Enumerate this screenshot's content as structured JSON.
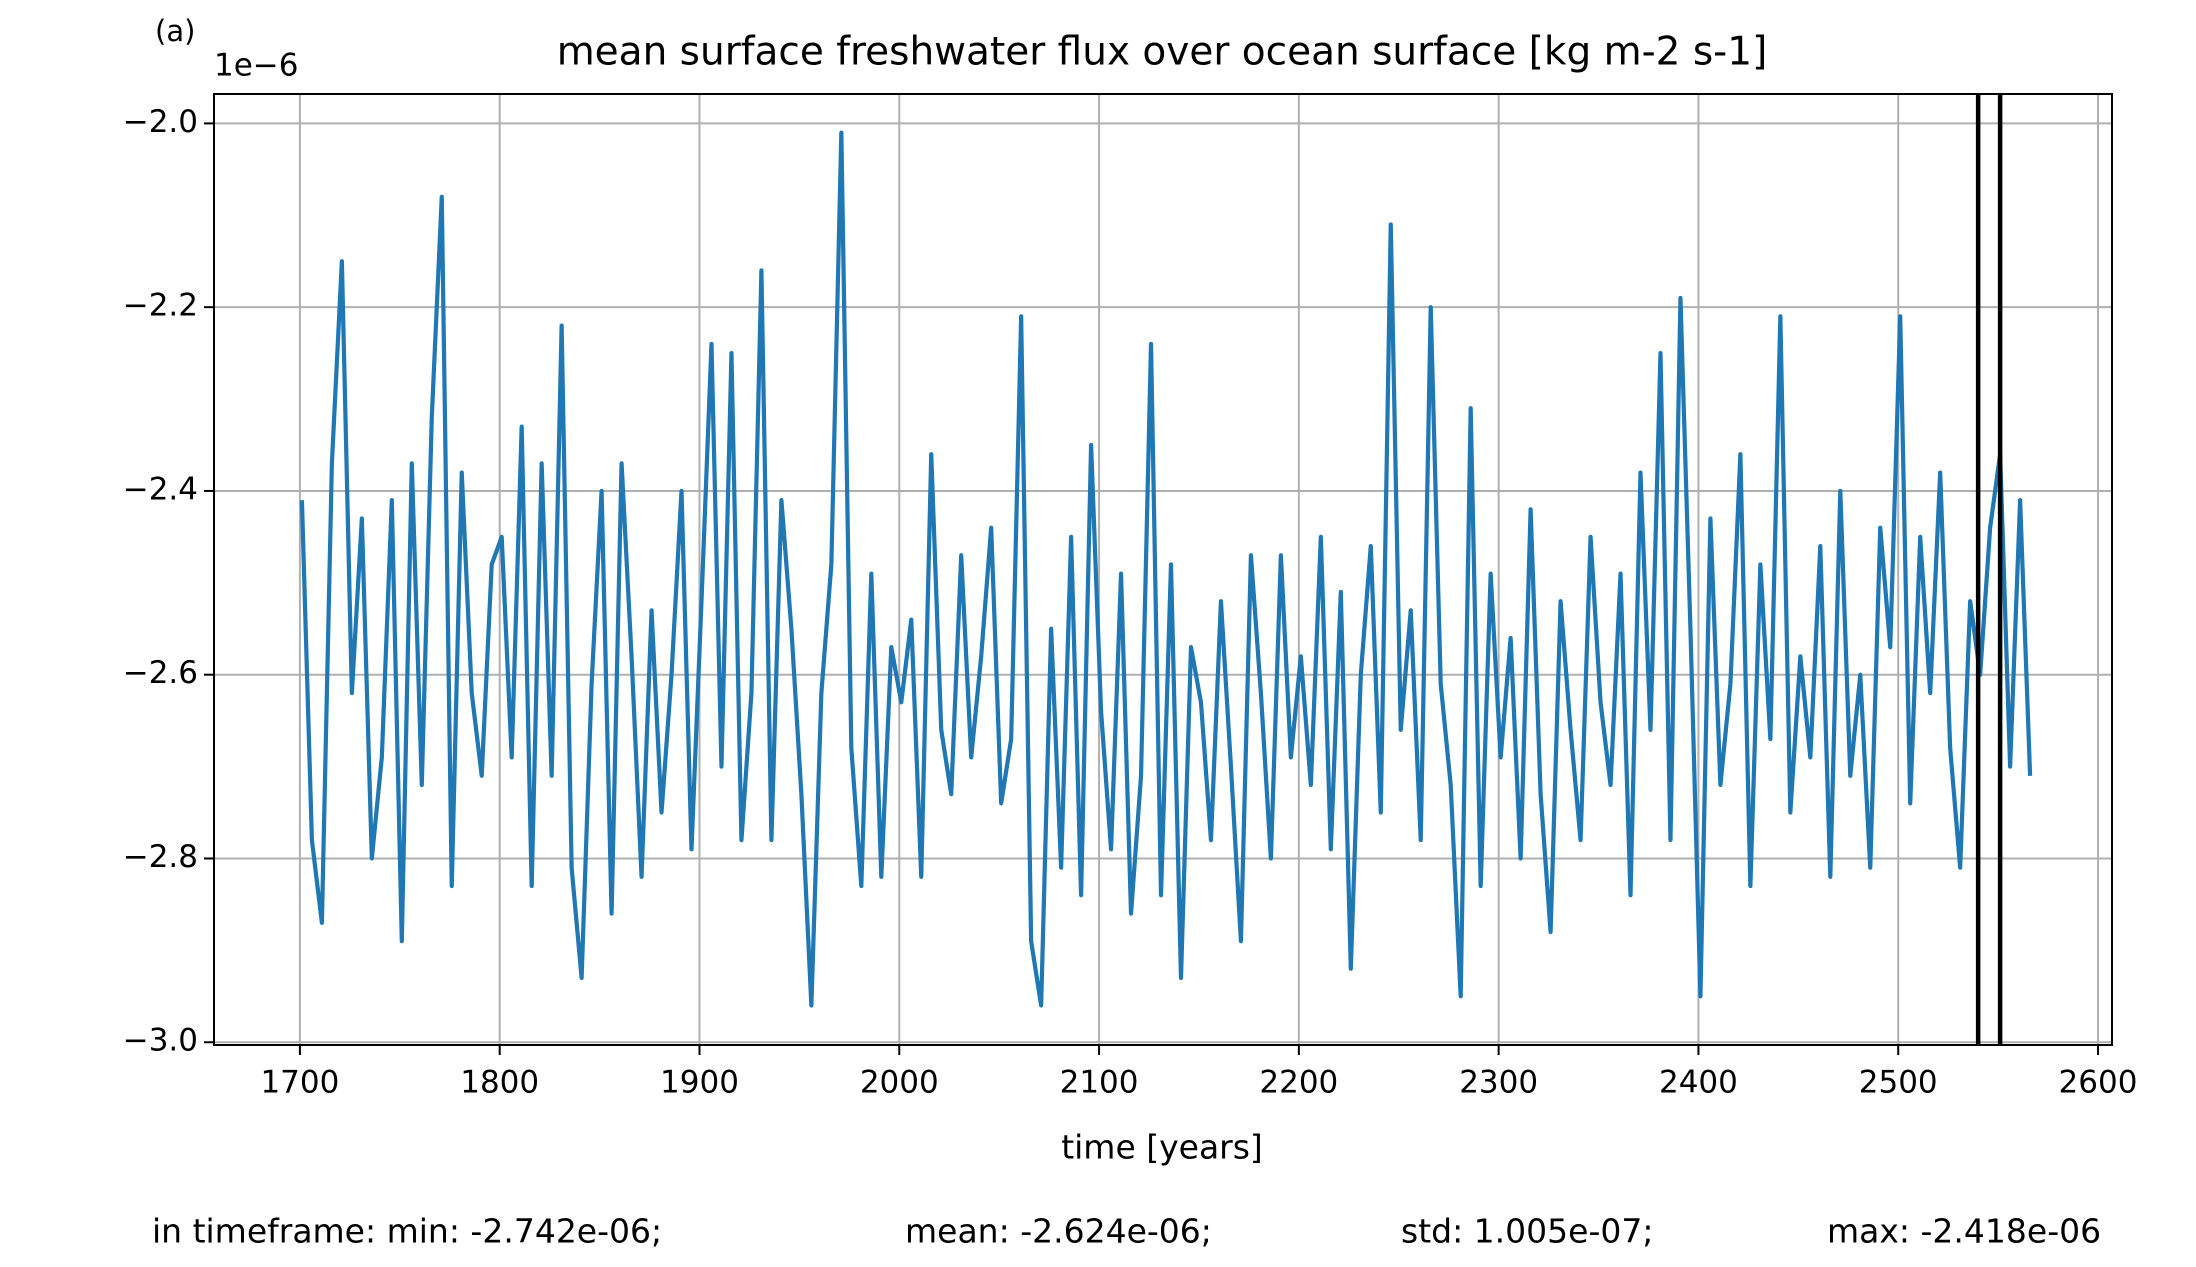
{
  "chart_data": {
    "type": "line",
    "panel_label": "(a)",
    "title": "mean surface freshwater flux over ocean surface [kg m-2 s-1]",
    "y_offset_label": "1e−6",
    "xlabel": "time [years]",
    "stats": [
      "in timeframe: min: -2.742e-06;",
      "mean: -2.624e-06;",
      "std: 1.005e-07;",
      "max: -2.418e-06"
    ],
    "x": [
      1701,
      1706,
      1711,
      1716,
      1721,
      1726,
      1731,
      1736,
      1741,
      1746,
      1751,
      1756,
      1761,
      1766,
      1771,
      1776,
      1781,
      1786,
      1791,
      1796,
      1801,
      1806,
      1811,
      1816,
      1821,
      1826,
      1831,
      1836,
      1841,
      1846,
      1851,
      1856,
      1861,
      1866,
      1871,
      1876,
      1881,
      1886,
      1891,
      1896,
      1901,
      1906,
      1911,
      1916,
      1921,
      1926,
      1931,
      1936,
      1941,
      1946,
      1951,
      1956,
      1961,
      1966,
      1971,
      1976,
      1981,
      1986,
      1991,
      1996,
      2001,
      2006,
      2011,
      2016,
      2021,
      2026,
      2031,
      2036,
      2041,
      2046,
      2051,
      2056,
      2061,
      2066,
      2071,
      2076,
      2081,
      2086,
      2091,
      2096,
      2101,
      2106,
      2111,
      2116,
      2121,
      2126,
      2131,
      2136,
      2141,
      2146,
      2151,
      2156,
      2161,
      2166,
      2171,
      2176,
      2181,
      2186,
      2191,
      2196,
      2201,
      2206,
      2211,
      2216,
      2221,
      2226,
      2231,
      2236,
      2241,
      2246,
      2251,
      2256,
      2261,
      2266,
      2271,
      2276,
      2281,
      2286,
      2291,
      2296,
      2301,
      2306,
      2311,
      2316,
      2321,
      2326,
      2331,
      2336,
      2341,
      2346,
      2351,
      2356,
      2361,
      2366,
      2371,
      2376,
      2381,
      2386,
      2391,
      2396,
      2401,
      2406,
      2411,
      2416,
      2421,
      2426,
      2431,
      2436,
      2441,
      2446,
      2451,
      2456,
      2461,
      2466,
      2471,
      2476,
      2481,
      2486,
      2491,
      2496,
      2501,
      2506,
      2511,
      2516,
      2521,
      2526,
      2531,
      2536,
      2541,
      2546,
      2551,
      2556,
      2561,
      2566
    ],
    "series": [
      {
        "color": "#1f77b4",
        "values": [
          -2.41,
          -2.78,
          -2.87,
          -2.37,
          -2.15,
          -2.62,
          -2.43,
          -2.8,
          -2.69,
          -2.41,
          -2.89,
          -2.37,
          -2.72,
          -2.32,
          -2.08,
          -2.83,
          -2.38,
          -2.62,
          -2.71,
          -2.48,
          -2.45,
          -2.69,
          -2.33,
          -2.83,
          -2.37,
          -2.71,
          -2.22,
          -2.81,
          -2.93,
          -2.61,
          -2.4,
          -2.86,
          -2.37,
          -2.58,
          -2.82,
          -2.53,
          -2.75,
          -2.6,
          -2.4,
          -2.79,
          -2.52,
          -2.24,
          -2.7,
          -2.25,
          -2.78,
          -2.62,
          -2.16,
          -2.78,
          -2.41,
          -2.55,
          -2.73,
          -2.96,
          -2.62,
          -2.48,
          -2.01,
          -2.68,
          -2.83,
          -2.49,
          -2.82,
          -2.57,
          -2.63,
          -2.54,
          -2.82,
          -2.36,
          -2.66,
          -2.73,
          -2.47,
          -2.69,
          -2.58,
          -2.44,
          -2.74,
          -2.67,
          -2.21,
          -2.89,
          -2.96,
          -2.55,
          -2.81,
          -2.45,
          -2.84,
          -2.35,
          -2.64,
          -2.79,
          -2.49,
          -2.86,
          -2.71,
          -2.24,
          -2.84,
          -2.48,
          -2.93,
          -2.57,
          -2.63,
          -2.78,
          -2.52,
          -2.7,
          -2.89,
          -2.47,
          -2.62,
          -2.8,
          -2.47,
          -2.69,
          -2.58,
          -2.72,
          -2.45,
          -2.79,
          -2.51,
          -2.92,
          -2.6,
          -2.46,
          -2.75,
          -2.11,
          -2.66,
          -2.53,
          -2.78,
          -2.2,
          -2.61,
          -2.72,
          -2.95,
          -2.31,
          -2.83,
          -2.49,
          -2.69,
          -2.56,
          -2.8,
          -2.42,
          -2.73,
          -2.88,
          -2.52,
          -2.66,
          -2.78,
          -2.45,
          -2.63,
          -2.72,
          -2.49,
          -2.84,
          -2.38,
          -2.66,
          -2.25,
          -2.78,
          -2.19,
          -2.55,
          -2.95,
          -2.43,
          -2.72,
          -2.61,
          -2.36,
          -2.83,
          -2.48,
          -2.67,
          -2.21,
          -2.75,
          -2.58,
          -2.69,
          -2.46,
          -2.82,
          -2.4,
          -2.71,
          -2.6,
          -2.81,
          -2.44,
          -2.57,
          -2.21,
          -2.74,
          -2.45,
          -2.62,
          -2.38,
          -2.68,
          -2.81,
          -2.52,
          -2.6,
          -2.44,
          -2.36,
          -2.7,
          -2.41,
          -2.71
        ]
      }
    ],
    "vlines": [
      2540,
      2551
    ],
    "vline_color": "#000000",
    "xlim": [
      1657,
      2607
    ],
    "ylim": [
      -3.003,
      -1.968
    ],
    "xticks": [
      1700,
      1800,
      1900,
      2000,
      2100,
      2200,
      2300,
      2400,
      2500,
      2600
    ],
    "yticks": [
      {
        "value": -2.0,
        "label": "−2.0"
      },
      {
        "value": -2.2,
        "label": "−2.2"
      },
      {
        "value": -2.4,
        "label": "−2.4"
      },
      {
        "value": -2.6,
        "label": "−2.6"
      },
      {
        "value": -2.8,
        "label": "−2.8"
      },
      {
        "value": -3.0,
        "label": "−3.0"
      }
    ],
    "grid": true
  }
}
